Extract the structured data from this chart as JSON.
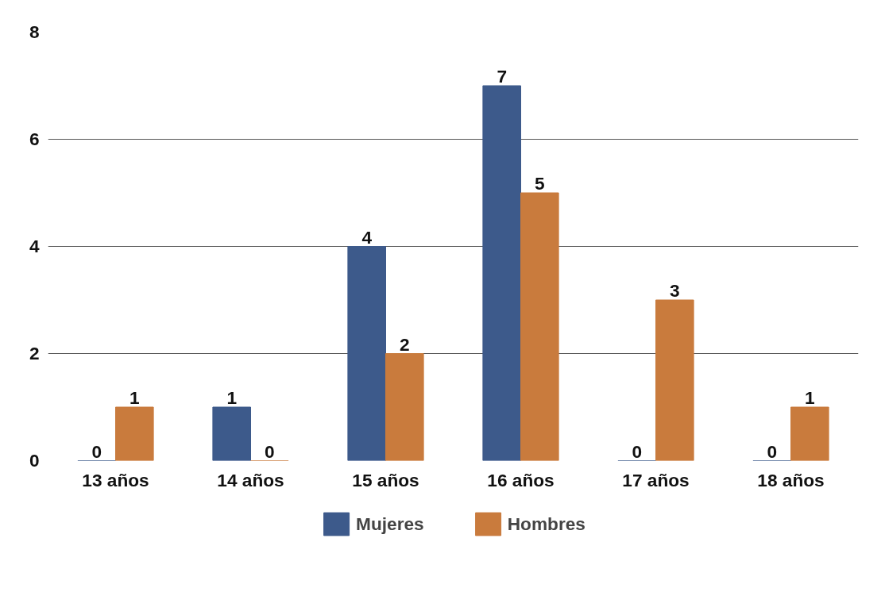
{
  "chart_data": {
    "type": "bar",
    "categories": [
      "13 años",
      "14 años",
      "15 años",
      "16 años",
      "17 años",
      "18 años"
    ],
    "series": [
      {
        "name": "Mujeres",
        "color": "#3d5a8b",
        "values": [
          0,
          1,
          4,
          7,
          0,
          0
        ]
      },
      {
        "name": "Hombres",
        "color": "#c97b3d",
        "values": [
          1,
          0,
          2,
          5,
          3,
          1
        ]
      }
    ],
    "ylim": [
      0,
      8
    ],
    "yticks": [
      0,
      2,
      4,
      6,
      8
    ],
    "grid": "y",
    "legend": "bottom",
    "data_labels": true
  }
}
